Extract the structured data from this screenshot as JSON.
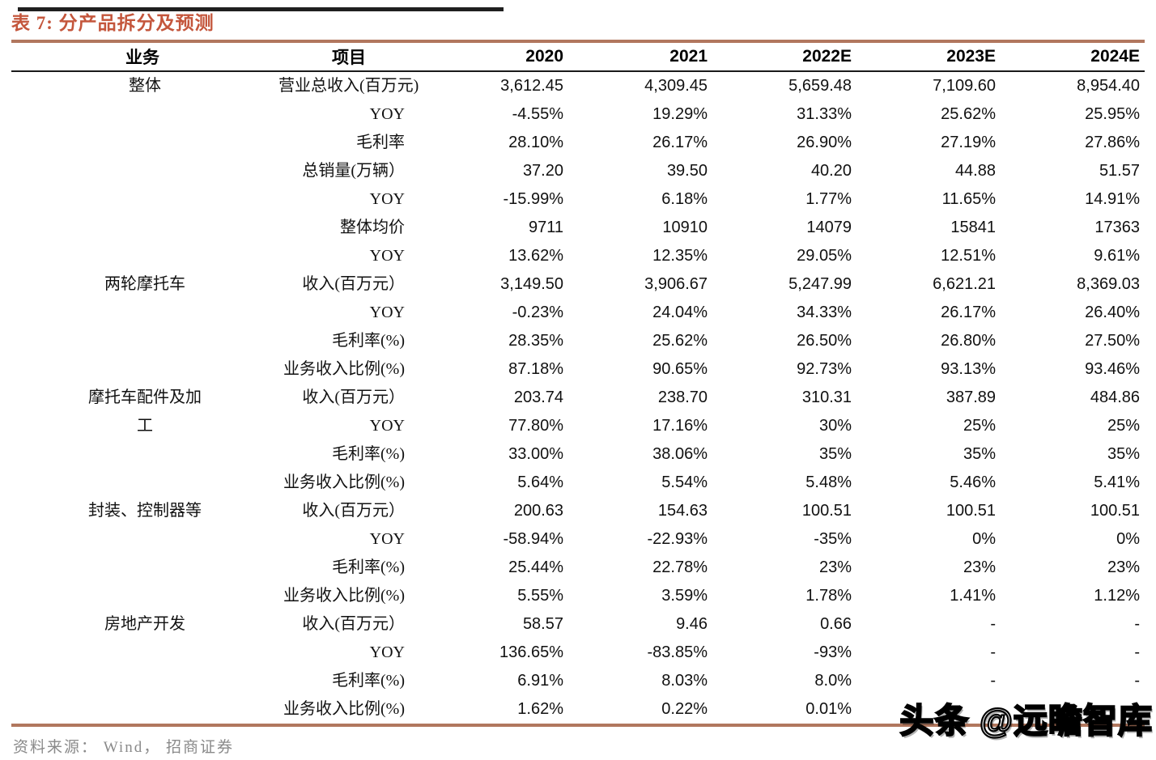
{
  "title": "表 7: 分产品拆分及预测",
  "columns": [
    "业务",
    "项目",
    "2020",
    "2021",
    "2022E",
    "2023E",
    "2024E"
  ],
  "sections": [
    {
      "business": "整体",
      "rows": [
        {
          "item": "营业总收入(百万元)",
          "values": [
            "3,612.45",
            "4,309.45",
            "5,659.48",
            "7,109.60",
            "8,954.40"
          ]
        },
        {
          "item": "YOY",
          "values": [
            "-4.55%",
            "19.29%",
            "31.33%",
            "25.62%",
            "25.95%"
          ]
        },
        {
          "item": "毛利率",
          "values": [
            "28.10%",
            "26.17%",
            "26.90%",
            "27.19%",
            "27.86%"
          ]
        },
        {
          "item": "总销量(万辆）",
          "values": [
            "37.20",
            "39.50",
            "40.20",
            "44.88",
            "51.57"
          ]
        },
        {
          "item": "YOY",
          "values": [
            "-15.99%",
            "6.18%",
            "1.77%",
            "11.65%",
            "14.91%"
          ]
        },
        {
          "item": "整体均价",
          "values": [
            "9711",
            "10910",
            "14079",
            "15841",
            "17363"
          ]
        },
        {
          "item": "YOY",
          "values": [
            "13.62%",
            "12.35%",
            "29.05%",
            "12.51%",
            "9.61%"
          ]
        }
      ]
    },
    {
      "business": "两轮摩托车",
      "rows": [
        {
          "item": "收入(百万元）",
          "values": [
            "3,149.50",
            "3,906.67",
            "5,247.99",
            "6,621.21",
            "8,369.03"
          ]
        },
        {
          "item": "YOY",
          "values": [
            "-0.23%",
            "24.04%",
            "34.33%",
            "26.17%",
            "26.40%"
          ]
        },
        {
          "item": "毛利率(%)",
          "values": [
            "28.35%",
            "25.62%",
            "26.50%",
            "26.80%",
            "27.50%"
          ]
        },
        {
          "item": "业务收入比例(%)",
          "values": [
            "87.18%",
            "90.65%",
            "92.73%",
            "93.13%",
            "93.46%"
          ]
        }
      ]
    },
    {
      "business": "摩托车配件及加工",
      "rows": [
        {
          "item": "收入(百万元）",
          "values": [
            "203.74",
            "238.70",
            "310.31",
            "387.89",
            "484.86"
          ]
        },
        {
          "item": "YOY",
          "values": [
            "77.80%",
            "17.16%",
            "30%",
            "25%",
            "25%"
          ]
        },
        {
          "item": "毛利率(%)",
          "values": [
            "33.00%",
            "38.06%",
            "35%",
            "35%",
            "35%"
          ]
        },
        {
          "item": "业务收入比例(%)",
          "values": [
            "5.64%",
            "5.54%",
            "5.48%",
            "5.46%",
            "5.41%"
          ]
        }
      ]
    },
    {
      "business": "封装、控制器等",
      "rows": [
        {
          "item": "收入(百万元）",
          "values": [
            "200.63",
            "154.63",
            "100.51",
            "100.51",
            "100.51"
          ]
        },
        {
          "item": "YOY",
          "values": [
            "-58.94%",
            "-22.93%",
            "-35%",
            "0%",
            "0%"
          ]
        },
        {
          "item": "毛利率(%)",
          "values": [
            "25.44%",
            "22.78%",
            "23%",
            "23%",
            "23%"
          ]
        },
        {
          "item": "业务收入比例(%)",
          "values": [
            "5.55%",
            "3.59%",
            "1.78%",
            "1.41%",
            "1.12%"
          ]
        }
      ]
    },
    {
      "business": "房地产开发",
      "rows": [
        {
          "item": "收入(百万元）",
          "values": [
            "58.57",
            "9.46",
            "0.66",
            "-",
            "-"
          ]
        },
        {
          "item": "YOY",
          "values": [
            "136.65%",
            "-83.85%",
            "-93%",
            "-",
            "-"
          ]
        },
        {
          "item": "毛利率(%)",
          "values": [
            "6.91%",
            "8.03%",
            "8.0%",
            "-",
            "-"
          ]
        },
        {
          "item": "业务收入比例(%)",
          "values": [
            "1.62%",
            "0.22%",
            "0.01%",
            "",
            ""
          ]
        }
      ]
    }
  ],
  "footer": {
    "source": "资料来源： Wind， 招商证券"
  },
  "watermark": "头条 @远瞻智库",
  "colors": {
    "accent_rule": "#b1775e",
    "title_text": "#c4563c",
    "body_text": "#111111",
    "footer_gray": "#8a8a8a"
  }
}
